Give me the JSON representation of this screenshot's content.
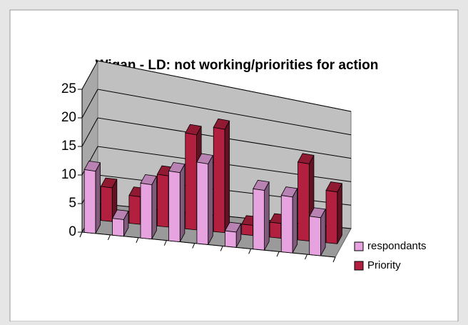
{
  "chart_data": {
    "type": "bar3d",
    "title": "Wigan - LD: not working/priorities for action",
    "categories": [
      null,
      null,
      null,
      null,
      null,
      null,
      null,
      null,
      null
    ],
    "series": [
      {
        "name": "respondants",
        "color": "#e6a3df",
        "values": [
          11,
          3,
          10,
          13,
          15.5,
          3,
          12,
          11.5,
          8
        ]
      },
      {
        "name": "Priority",
        "color": "#b3203f",
        "values": [
          6,
          5,
          9.5,
          18,
          20,
          2,
          3,
          16,
          11
        ]
      }
    ],
    "ylim": [
      0,
      25
    ],
    "yticks": [
      0,
      5,
      10,
      15,
      20,
      25
    ],
    "grid": true,
    "legend": "right"
  }
}
